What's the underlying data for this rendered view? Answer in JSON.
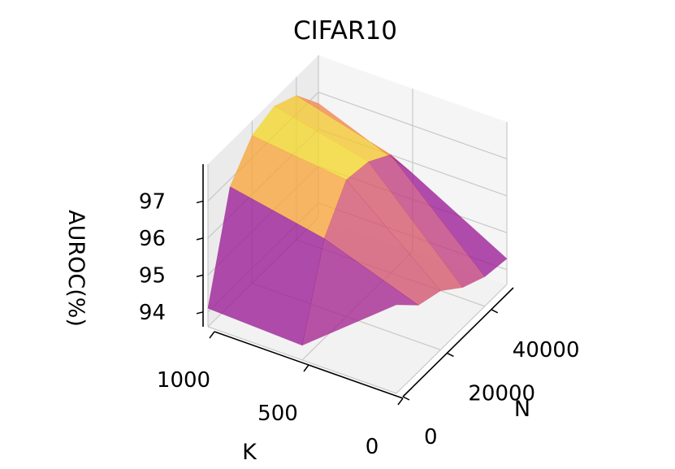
{
  "chart_data": {
    "type": "surface3d",
    "title": "CIFAR10",
    "xlabel": "K",
    "ylabel": "N",
    "zlabel": "AUROC(%)",
    "k_ticks": [
      "1000",
      "500",
      "0"
    ],
    "n_ticks": [
      "0",
      "20000",
      "40000"
    ],
    "z_ticks": [
      "94",
      "95",
      "96",
      "97"
    ],
    "xlim": [
      0,
      1000
    ],
    "ylim": [
      0,
      50000
    ],
    "zlim": [
      93.6,
      98.0
    ],
    "grid": true,
    "colormap": "plasma",
    "colormap_stops": [
      "#0d0887",
      "#7e03a8",
      "#cc4778",
      "#f89540",
      "#f0f921"
    ],
    "k_values": [
      1000,
      500,
      0
    ],
    "n_values": [
      0,
      10000,
      20000,
      30000,
      40000,
      50000
    ],
    "auroc": [
      [
        94.1,
        96.8,
        97.6,
        97.8,
        97.5,
        96.7
      ],
      [
        94.0,
        96.3,
        97.3,
        97.2,
        96.8,
        95.7
      ],
      [
        96.0,
        95.4,
        95.2,
        94.7,
        94.4,
        94.3
      ]
    ]
  }
}
